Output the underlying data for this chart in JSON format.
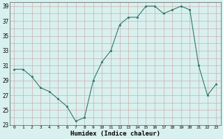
{
  "x": [
    0,
    1,
    2,
    3,
    4,
    5,
    6,
    7,
    8,
    9,
    10,
    11,
    12,
    13,
    14,
    15,
    16,
    17,
    18,
    19,
    20,
    21,
    22,
    23
  ],
  "y": [
    30.5,
    30.5,
    29.5,
    28.0,
    27.5,
    26.5,
    25.5,
    23.5,
    24.0,
    29.0,
    31.5,
    33.0,
    36.5,
    37.5,
    37.5,
    39.0,
    39.0,
    38.0,
    38.5,
    39.0,
    38.5,
    31.0,
    27.0,
    28.5
  ],
  "xlim": [
    -0.5,
    23.5
  ],
  "ylim": [
    23,
    39.5
  ],
  "yticks": [
    23,
    25,
    27,
    29,
    31,
    33,
    35,
    37,
    39
  ],
  "xticks": [
    0,
    1,
    2,
    3,
    4,
    5,
    6,
    7,
    8,
    9,
    10,
    11,
    12,
    13,
    14,
    15,
    16,
    17,
    18,
    19,
    20,
    21,
    22,
    23
  ],
  "xlabel": "Humidex (Indice chaleur)",
  "line_color": "#2d7a6a",
  "marker_color": "#2d7a6a",
  "bg_color": "#d8f0ee",
  "grid_major_color": "#c8a0a0",
  "grid_minor_color": "#c8a0a0"
}
